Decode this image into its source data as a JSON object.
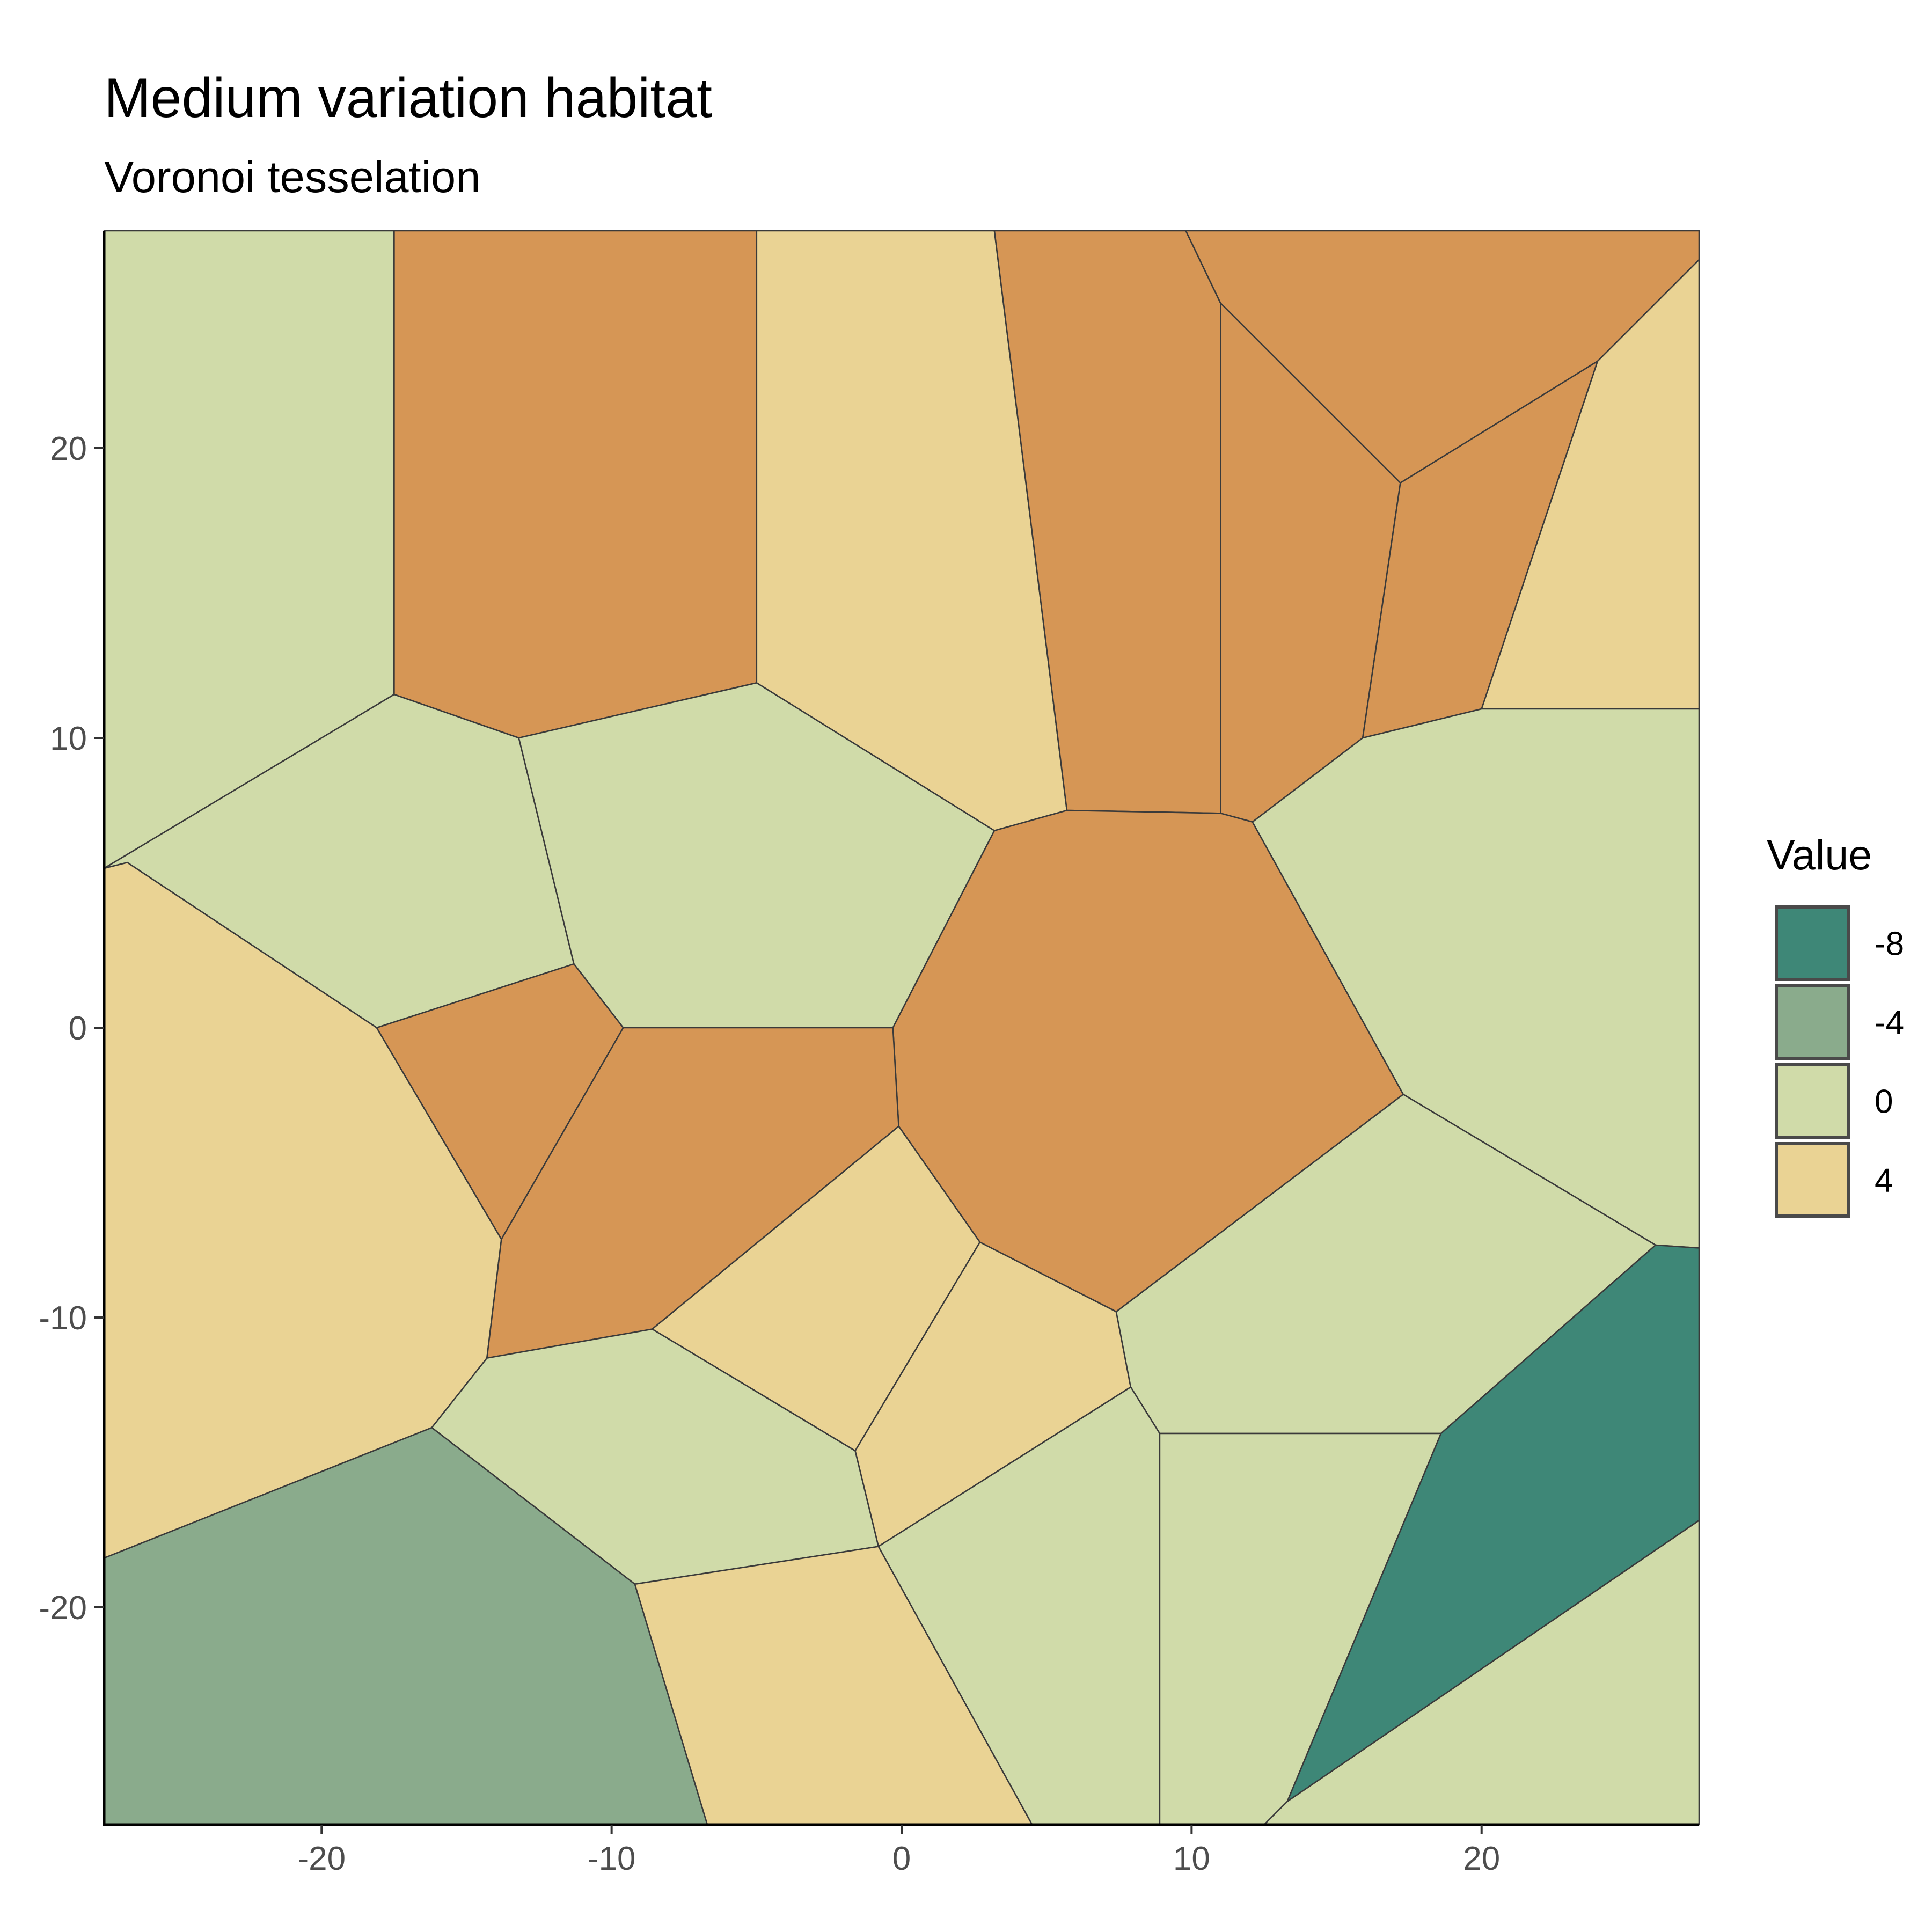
{
  "chart_data": {
    "type": "heatmap",
    "subtype": "voronoi",
    "title": "Medium variation habitat",
    "subtitle": "Voronoi tesselation",
    "xlim": [
      -27.5,
      27.5
    ],
    "ylim": [
      -27.5,
      27.5
    ],
    "x_ticks": [
      -20,
      -10,
      0,
      10,
      20
    ],
    "y_ticks": [
      -20,
      -10,
      0,
      10,
      20
    ],
    "x_tick_labels": [
      "-20",
      "-10",
      "0",
      "10",
      "20"
    ],
    "y_tick_labels": [
      "-20",
      "-10",
      "0",
      "10",
      "20"
    ],
    "grid": false,
    "legend": {
      "title": "Value",
      "position": "right",
      "entries": [
        {
          "label": "-8",
          "value": -8
        },
        {
          "label": "-4",
          "value": -4
        },
        {
          "label": "0",
          "value": 0
        },
        {
          "label": "4",
          "value": 4
        }
      ]
    },
    "color_scale": [
      {
        "value": -8,
        "color": "#3e8777"
      },
      {
        "value": -4,
        "color": "#8aab8c"
      },
      {
        "value": 0,
        "color": "#d0dba9"
      },
      {
        "value": 4,
        "color": "#ead394"
      },
      {
        "value": 8,
        "color": "#d69655"
      }
    ],
    "cells": [
      {
        "value": 0,
        "polygon": [
          [
            -27.5,
            27.5
          ],
          [
            -17.5,
            27.5
          ],
          [
            -17.5,
            11.5
          ],
          [
            -27.5,
            5.5
          ]
        ]
      },
      {
        "value": 8,
        "polygon": [
          [
            -17.5,
            27.5
          ],
          [
            -5,
            27.5
          ],
          [
            -5,
            11.9
          ],
          [
            -13.2,
            10
          ],
          [
            -17.5,
            11.5
          ]
        ]
      },
      {
        "value": 4,
        "polygon": [
          [
            -5,
            27.5
          ],
          [
            3.2,
            27.5
          ],
          [
            5.7,
            7.5
          ],
          [
            3.2,
            6.8
          ],
          [
            -5,
            11.9
          ]
        ]
      },
      {
        "value": 8,
        "polygon": [
          [
            3.2,
            27.5
          ],
          [
            9.8,
            27.5
          ],
          [
            11,
            25
          ],
          [
            11,
            7.4
          ],
          [
            5.7,
            7.5
          ]
        ]
      },
      {
        "value": 8,
        "polygon": [
          [
            9.8,
            27.5
          ],
          [
            27.5,
            27.5
          ],
          [
            27.5,
            26.5
          ],
          [
            24,
            23
          ],
          [
            17.2,
            18.8
          ],
          [
            11,
            25
          ]
        ]
      },
      {
        "value": 8,
        "polygon": [
          [
            11,
            25
          ],
          [
            17.2,
            18.8
          ],
          [
            15.9,
            10
          ],
          [
            12.1,
            7.1
          ],
          [
            11,
            7.4
          ]
        ]
      },
      {
        "value": 8,
        "polygon": [
          [
            17.2,
            18.8
          ],
          [
            24,
            23
          ],
          [
            20,
            11
          ],
          [
            15.9,
            10
          ]
        ]
      },
      {
        "value": 4,
        "polygon": [
          [
            24,
            23
          ],
          [
            27.5,
            26.5
          ],
          [
            27.5,
            11
          ],
          [
            20,
            11
          ]
        ]
      },
      {
        "value": 0,
        "polygon": [
          [
            -27.5,
            5.5
          ],
          [
            -17.5,
            11.5
          ],
          [
            -13.2,
            10
          ],
          [
            -11.3,
            2.2
          ],
          [
            -18.1,
            0
          ],
          [
            -26.7,
            5.7
          ]
        ]
      },
      {
        "value": 0,
        "polygon": [
          [
            -13.2,
            10
          ],
          [
            -5,
            11.9
          ],
          [
            3.2,
            6.8
          ],
          [
            -0.3,
            0
          ],
          [
            -9.6,
            0
          ],
          [
            -11.3,
            2.2
          ]
        ]
      },
      {
        "value": 8,
        "polygon": [
          [
            3.2,
            6.8
          ],
          [
            5.7,
            7.5
          ],
          [
            11,
            7.4
          ],
          [
            12.1,
            7.1
          ],
          [
            17.3,
            -2.3
          ],
          [
            7.4,
            -9.8
          ],
          [
            2.7,
            -7.4
          ],
          [
            -0.1,
            -3.4
          ],
          [
            -0.3,
            0
          ]
        ]
      },
      {
        "value": 0,
        "polygon": [
          [
            12.1,
            7.1
          ],
          [
            15.9,
            10
          ],
          [
            20,
            11
          ],
          [
            27.5,
            11
          ],
          [
            27.5,
            -7.6
          ],
          [
            26,
            -7.5
          ],
          [
            17.3,
            -2.3
          ]
        ]
      },
      {
        "value": 4,
        "polygon": [
          [
            -27.5,
            5.5
          ],
          [
            -26.7,
            5.7
          ],
          [
            -18.1,
            0
          ],
          [
            -13.8,
            -7.3
          ],
          [
            -14.3,
            -11.4
          ],
          [
            -16.2,
            -13.8
          ],
          [
            -27.5,
            -18.3
          ]
        ]
      },
      {
        "value": 8,
        "polygon": [
          [
            -18.1,
            0
          ],
          [
            -11.3,
            2.2
          ],
          [
            -9.6,
            0
          ],
          [
            -13.8,
            -7.3
          ]
        ]
      },
      {
        "value": 8,
        "polygon": [
          [
            -9.6,
            0
          ],
          [
            -0.3,
            0
          ],
          [
            -0.1,
            -3.4
          ],
          [
            -8.6,
            -10.4
          ],
          [
            -14.3,
            -11.4
          ],
          [
            -13.8,
            -7.3
          ]
        ]
      },
      {
        "value": 4,
        "polygon": [
          [
            -0.1,
            -3.4
          ],
          [
            2.7,
            -7.4
          ],
          [
            -1.6,
            -14.6
          ],
          [
            -8.6,
            -10.4
          ]
        ]
      },
      {
        "value": 4,
        "polygon": [
          [
            2.7,
            -7.4
          ],
          [
            7.4,
            -9.8
          ],
          [
            7.9,
            -12.4
          ],
          [
            -0.8,
            -17.9
          ],
          [
            -1.6,
            -14.6
          ]
        ]
      },
      {
        "value": 0,
        "polygon": [
          [
            7.4,
            -9.8
          ],
          [
            17.3,
            -2.3
          ],
          [
            26,
            -7.5
          ],
          [
            18.6,
            -14
          ],
          [
            8.9,
            -14
          ],
          [
            7.9,
            -12.4
          ]
        ]
      },
      {
        "value": 0,
        "polygon": [
          [
            -14.3,
            -11.4
          ],
          [
            -8.6,
            -10.4
          ],
          [
            -1.6,
            -14.6
          ],
          [
            -0.8,
            -17.9
          ],
          [
            -9.2,
            -19.2
          ],
          [
            -16.2,
            -13.8
          ]
        ]
      },
      {
        "value": 0,
        "polygon": [
          [
            -0.8,
            -17.9
          ],
          [
            7.9,
            -12.4
          ],
          [
            8.9,
            -14
          ],
          [
            8.9,
            -27.5
          ],
          [
            4.5,
            -27.5
          ]
        ]
      },
      {
        "value": 0,
        "polygon": [
          [
            8.9,
            -14
          ],
          [
            18.6,
            -14
          ],
          [
            13.3,
            -26.7
          ],
          [
            12.5,
            -27.5
          ],
          [
            8.9,
            -27.5
          ]
        ]
      },
      {
        "value": -8,
        "polygon": [
          [
            18.6,
            -14
          ],
          [
            26,
            -7.5
          ],
          [
            27.5,
            -7.6
          ],
          [
            27.5,
            -17
          ],
          [
            13.3,
            -26.7
          ]
        ]
      },
      {
        "value": 0,
        "polygon": [
          [
            13.3,
            -26.7
          ],
          [
            27.5,
            -17
          ],
          [
            27.5,
            -27.5
          ],
          [
            12.5,
            -27.5
          ]
        ]
      },
      {
        "value": -4,
        "polygon": [
          [
            -27.5,
            -18.3
          ],
          [
            -16.2,
            -13.8
          ],
          [
            -9.2,
            -19.2
          ],
          [
            -6.7,
            -27.5
          ],
          [
            -27.5,
            -27.5
          ]
        ]
      },
      {
        "value": 4,
        "polygon": [
          [
            -9.2,
            -19.2
          ],
          [
            -0.8,
            -17.9
          ],
          [
            4.5,
            -27.5
          ],
          [
            -6.7,
            -27.5
          ]
        ]
      }
    ]
  }
}
